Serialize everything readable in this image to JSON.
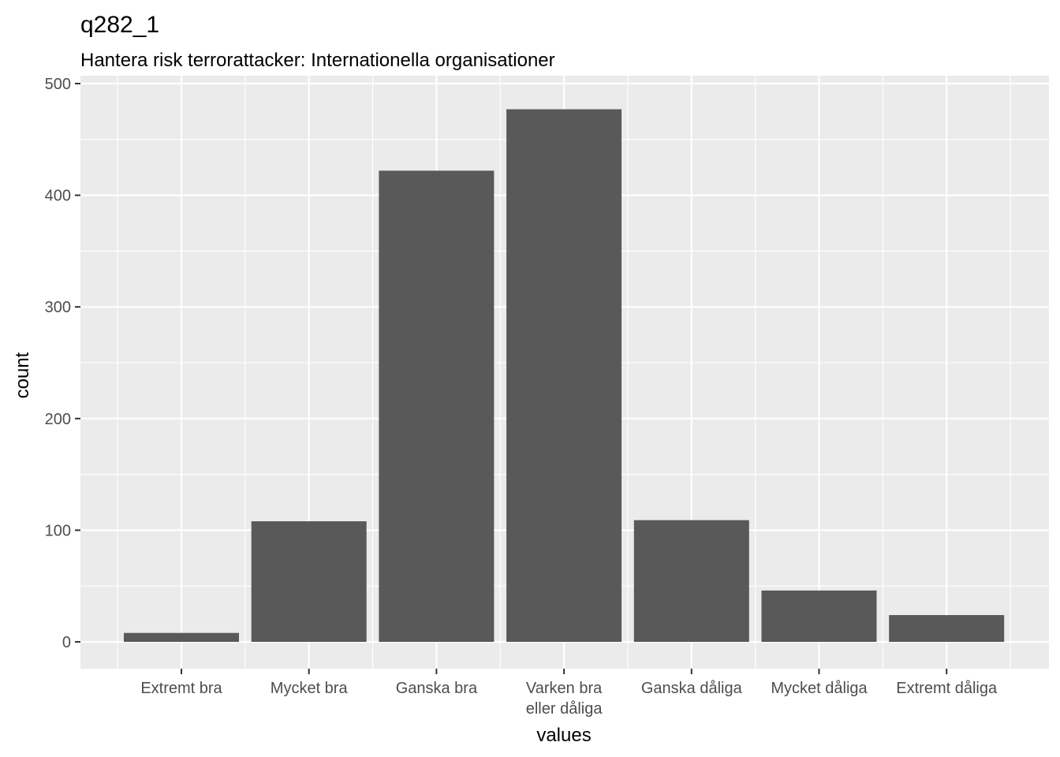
{
  "chart_data": {
    "type": "bar",
    "title": "q282_1",
    "subtitle": "Hantera risk terrorattacker: Internationella organisationer",
    "xlabel": "values",
    "ylabel": "count",
    "categories": [
      [
        "Extremt bra"
      ],
      [
        "Mycket bra"
      ],
      [
        "Ganska bra"
      ],
      [
        "Varken bra",
        "eller dåliga"
      ],
      [
        "Ganska dåliga"
      ],
      [
        "Mycket dåliga"
      ],
      [
        "Extremt dåliga"
      ]
    ],
    "values": [
      8,
      108,
      422,
      477,
      109,
      46,
      24
    ],
    "ylim": [
      0,
      500
    ],
    "yticks": [
      "0",
      "100",
      "200",
      "300",
      "400",
      "500"
    ],
    "grid": true,
    "colors": {
      "panel": "#ebebeb",
      "grid_major": "#ffffff",
      "bar": "#595959",
      "tick": "#333333"
    }
  }
}
